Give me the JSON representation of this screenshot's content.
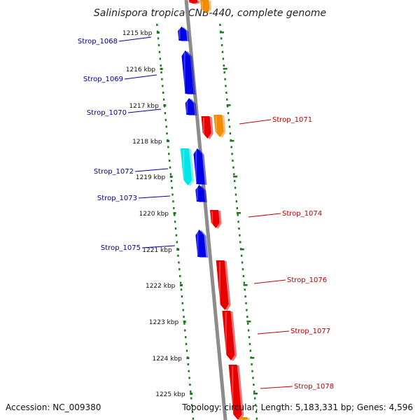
{
  "title_italic": "Salinispora tropica",
  "title_rest": " CNB-440, complete genome",
  "footer": {
    "accession": "Accession: NC_009380",
    "summary": "Topology: circular; Length: 5,183,331 bp; Genes: 4,596"
  },
  "colors": {
    "backbone": "#8c8c8c",
    "tick": "#1a7a1a",
    "gene_minus": "#0000e6",
    "gene_plus": "#e60000",
    "gene_orange": "#f08c00",
    "gene_cyan": "#00e6e6",
    "label_minus": "#0000a0",
    "label_plus": "#c00000"
  },
  "ruler": [
    {
      "label": "1215 kbp",
      "kbp": 1215
    },
    {
      "label": "1216 kbp",
      "kbp": 1216
    },
    {
      "label": "1217 kbp",
      "kbp": 1217
    },
    {
      "label": "1218 kbp",
      "kbp": 1218
    },
    {
      "label": "1219 kbp",
      "kbp": 1219
    },
    {
      "label": "1220 kbp",
      "kbp": 1220
    },
    {
      "label": "1221 kbp",
      "kbp": 1221
    },
    {
      "label": "1222 kbp",
      "kbp": 1222
    },
    {
      "label": "1223 kbp",
      "kbp": 1223
    },
    {
      "label": "1224 kbp",
      "kbp": 1224
    },
    {
      "label": "1225 kbp",
      "kbp": 1225
    }
  ],
  "genes_left": [
    {
      "name": "Strop_1068"
    },
    {
      "name": "Strop_1069"
    },
    {
      "name": "Strop_1070"
    },
    {
      "name": "Strop_1072"
    },
    {
      "name": "Strop_1073"
    },
    {
      "name": "Strop_1075"
    }
  ],
  "genes_right": [
    {
      "name": "Strop_1071"
    },
    {
      "name": "Strop_1074"
    },
    {
      "name": "Strop_1076"
    },
    {
      "name": "Strop_1077"
    },
    {
      "name": "Strop_1078"
    }
  ]
}
